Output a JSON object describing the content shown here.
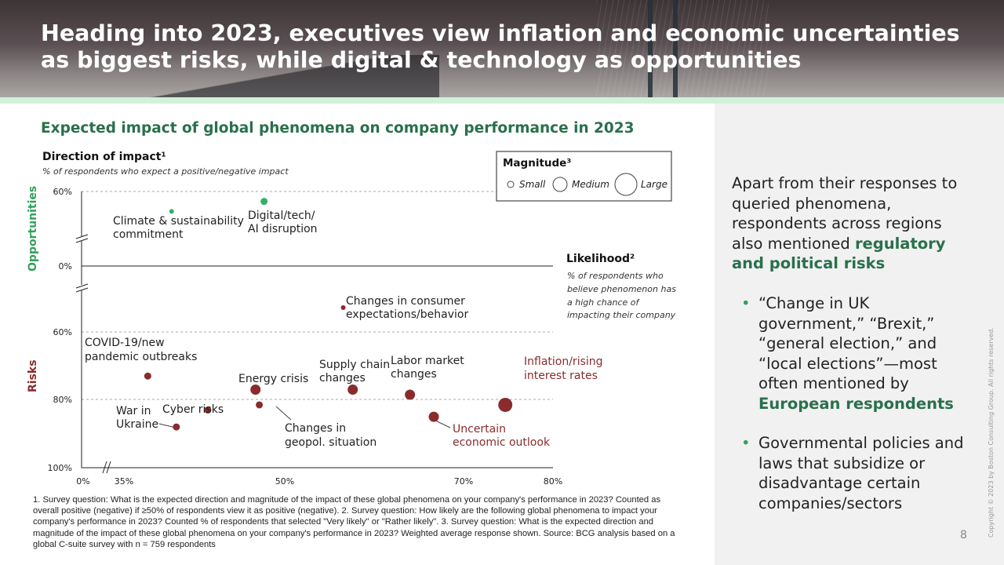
{
  "page": {
    "title": "Heading into 2023, executives view inflation and economic uncertainties as biggest risks, while digital & technology as opportunities",
    "subtitle": "Expected impact of global phenomena on company performance in 2023",
    "page_number": "8",
    "copyright": "Copyright © 2023 by Boston Consulting Group. All rights reserved.",
    "footnote": "1. Survey question: What is the expected direction and magnitude of the impact of these global phenomena on your company's performance in 2023? Counted as overall positive (negative) if ≥50% of respondents view it as positive (negative). 2. Survey question: How likely are the following global phenomena to impact your company's performance in 2023? Counted % of respondents that selected \"Very likely\" or \"Rather likely\". 3. Survey question: What is the expected direction and magnitude of the impact of these global phenomena on your company's performance in 2023? Weighted average response shown.  Source: BCG analysis based on a global C-suite survey with n = 759 respondents"
  },
  "side": {
    "intro_plain": "Apart from their responses to queried phenomena, respondents across regions also mentioned ",
    "intro_bold": "regulatory and political risks",
    "bullet1_plain": "“Change in UK government,” “Brexit,” “general election,”  and “local elections”—most often mentioned by ",
    "bullet1_bold": "European respondents",
    "bullet2": "Governmental policies and laws that subsidize or disadvantage certain companies/sectors"
  },
  "chart_data": {
    "type": "scatter",
    "title": "Expected impact of global phenomena on company performance in 2023",
    "ylabel": "Direction of impact¹",
    "ylabel_note": "% of respondents who expect a positive/negative impact",
    "xlabel": "Likelihood²",
    "xlabel_note": "% of respondents who believe phenomenon has a high chance of impacting their company",
    "opportunities_label": "Opportunities",
    "risks_label": "Risks",
    "x_ticks": [
      "0%",
      "35%",
      "50%",
      "70%",
      "80%"
    ],
    "y_ticks_opportunities": [
      "60%",
      "0%"
    ],
    "y_ticks_risks": [
      "60%",
      "80%",
      "100%"
    ],
    "x_range": [
      35,
      80
    ],
    "y_range_risks": [
      60,
      100
    ],
    "y_range_opportunities": [
      0,
      60
    ],
    "legend": {
      "title": "Magnitude³",
      "items": [
        "Small",
        "Medium",
        "Large"
      ]
    },
    "opportunities": [
      {
        "label": "Climate & sustainability commitment",
        "x": 40,
        "y": 44,
        "size": "small"
      },
      {
        "label": "Digital/tech/ AI disruption",
        "x": 49.7,
        "y": 52,
        "size": "small-plus"
      }
    ],
    "risks": [
      {
        "label": "Changes in consumer expectations/behavior",
        "x": 58,
        "y": 52,
        "size": "small"
      },
      {
        "label": "COVID-19/new pandemic outbreaks",
        "x": 37.5,
        "y": 73,
        "size": "small-plus"
      },
      {
        "label": "War in Ukraine",
        "x": 40.5,
        "y": 88,
        "size": "small-plus"
      },
      {
        "label": "Cyber risks",
        "x": 43.8,
        "y": 83,
        "size": "small-plus"
      },
      {
        "label": "Energy crisis",
        "x": 48.8,
        "y": 77,
        "size": "medium"
      },
      {
        "label": "Changes in geopol. situation",
        "x": 49.2,
        "y": 81.5,
        "size": "small-plus"
      },
      {
        "label": "Supply chain changes",
        "x": 59,
        "y": 77,
        "size": "medium"
      },
      {
        "label": "Labor market changes",
        "x": 65,
        "y": 78.5,
        "size": "medium"
      },
      {
        "label": "Uncertain economic outlook",
        "x": 67.5,
        "y": 85,
        "size": "medium"
      },
      {
        "label": "Inflation/rising interest rates",
        "x": 75,
        "y": 81.5,
        "size": "large"
      }
    ],
    "colors": {
      "opportunity": "#32b06b",
      "risk": "#8a2b2c",
      "risk_highlight": "#8a2b2c",
      "opportunity_text": "#32a05a"
    }
  }
}
